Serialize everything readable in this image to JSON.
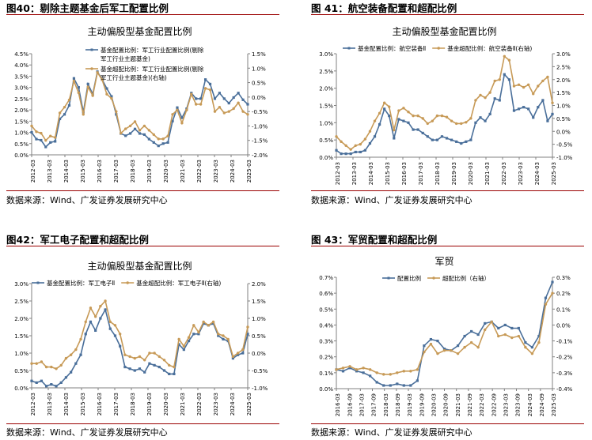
{
  "source_text": "数据来源：Wind、广发证券发展研究中心",
  "colors": {
    "blue": "#4a6f9a",
    "gold": "#c79a57",
    "axis": "#808080",
    "rule": "#9a0000"
  },
  "panels": [
    {
      "figure_title": "图40：剔除主题基金后军工配置比例",
      "chart_data": {
        "type": "line",
        "title": "主动偏股型基金配置比例",
        "legend_position": "top-center",
        "grid": false,
        "x_ticks": [
          "2012-03",
          "2013-03",
          "2014-03",
          "2015-03",
          "2016-03",
          "2017-03",
          "2018-03",
          "2019-03",
          "2020-03",
          "2021-03",
          "2022-03",
          "2023-03",
          "2024-03",
          "2025-03"
        ],
        "left_ticks": [
          "4.5%",
          "4.0%",
          "3.5%",
          "3.0%",
          "2.5%",
          "2.0%",
          "1.5%",
          "1.0%",
          "0.5%",
          "0.0%"
        ],
        "right_ticks": [
          "1.5%",
          "1.0%",
          "0.5%",
          "0.0%",
          "-0.5%",
          "-1.0%",
          "-1.5%",
          "-2.0%"
        ],
        "ylim_left": [
          0,
          4.5
        ],
        "ylim_right": [
          -2.0,
          1.5
        ],
        "series": [
          {
            "name": "基金配置比例：军工行业配置比例(剔除军工行业主题基金)",
            "axis": "left",
            "values": [
              1.0,
              0.7,
              0.65,
              0.35,
              0.55,
              0.6,
              1.6,
              1.8,
              2.2,
              3.4,
              3.0,
              1.9,
              3.15,
              2.7,
              3.7,
              3.35,
              2.95,
              2.6,
              1.8,
              0.95,
              0.85,
              0.95,
              1.15,
              0.95,
              0.9,
              0.7,
              0.55,
              0.4,
              0.5,
              0.55,
              1.5,
              2.1,
              1.65,
              2.05,
              2.75,
              2.5,
              2.5,
              3.35,
              3.15,
              2.5,
              2.75,
              2.5,
              2.3,
              2.55,
              2.75,
              2.45,
              2.25
            ]
          },
          {
            "name": "基金超配比例：军工行业配置比例(剔除军工行业主题基金)(右轴)",
            "axis": "right",
            "values": [
              -1.0,
              -1.2,
              -1.25,
              -1.5,
              -1.35,
              -1.4,
              -0.55,
              -0.35,
              -0.1,
              0.55,
              0.15,
              -0.6,
              0.35,
              0.05,
              0.85,
              0.6,
              0.1,
              -0.05,
              -0.5,
              -1.25,
              -1.1,
              -1.0,
              -0.85,
              -1.15,
              -1.0,
              -1.15,
              -1.3,
              -1.45,
              -1.45,
              -1.35,
              -0.6,
              -0.45,
              -0.9,
              -0.45,
              0.1,
              -0.25,
              -0.25,
              0.3,
              0.25,
              -0.5,
              -0.35,
              -0.55,
              -0.5,
              -0.4,
              -0.2,
              -0.5,
              -0.6
            ]
          }
        ]
      }
    },
    {
      "figure_title": "图 41：航空装备配置和超配比例",
      "chart_data": {
        "type": "line",
        "title": "主动偏股型基金配置比例",
        "legend_position": "top-center",
        "grid": false,
        "x_ticks": [
          "2012-03",
          "2013-03",
          "2014-03",
          "2015-03",
          "2016-03",
          "2017-03",
          "2018-03",
          "2019-03",
          "2020-03",
          "2021-03",
          "2022-03",
          "2023-03",
          "2024-03",
          "2025-03"
        ],
        "left_ticks": [
          "3.0%",
          "2.5%",
          "2.0%",
          "1.5%",
          "1.0%",
          "0.5%",
          "0.0%"
        ],
        "right_ticks": [
          "3.0%",
          "2.5%",
          "2.0%",
          "1.5%",
          "1.0%",
          "0.5%",
          "0.0%",
          "-0.5%",
          "-1.0%"
        ],
        "ylim_left": [
          0,
          3.0
        ],
        "ylim_right": [
          -1.0,
          3.0
        ],
        "series": [
          {
            "name": "基金配置比例：航空装备Ⅱ",
            "axis": "left",
            "values": [
              0.2,
              0.1,
              0.1,
              0.1,
              0.15,
              0.15,
              0.2,
              0.4,
              0.6,
              0.95,
              1.4,
              1.2,
              0.55,
              1.1,
              1.05,
              1.0,
              0.8,
              0.8,
              0.7,
              0.6,
              0.5,
              0.5,
              0.6,
              0.55,
              0.5,
              0.45,
              0.4,
              0.45,
              0.5,
              1.0,
              1.15,
              1.05,
              1.25,
              1.7,
              1.65,
              2.4,
              2.25,
              1.35,
              1.4,
              1.45,
              1.4,
              1.15,
              1.45,
              1.65,
              1.05,
              1.25
            ]
          },
          {
            "name": "基金超配比例：航空装备Ⅱ(右轴)",
            "axis": "right",
            "values": [
              -0.2,
              -0.4,
              -0.55,
              -0.7,
              -0.55,
              -0.5,
              -0.3,
              0.0,
              0.4,
              0.7,
              1.1,
              0.95,
              0.05,
              0.8,
              0.9,
              0.75,
              0.6,
              0.6,
              0.5,
              0.3,
              0.4,
              0.6,
              0.6,
              0.55,
              0.4,
              0.3,
              0.3,
              0.35,
              0.5,
              1.2,
              1.4,
              1.3,
              1.5,
              1.95,
              2.0,
              2.9,
              2.75,
              1.75,
              1.8,
              1.7,
              1.8,
              1.45,
              1.75,
              1.95,
              2.1,
              1.1
            ]
          }
        ]
      }
    },
    {
      "figure_title": "图42：军工电子配置和超配比例",
      "chart_data": {
        "type": "line",
        "title": "主动偏股型基金配置比例",
        "legend_position": "top-center",
        "grid": false,
        "x_ticks": [
          "2012-03",
          "2013-03",
          "2014-03",
          "2015-03",
          "2016-03",
          "2017-03",
          "2018-03",
          "2019-03",
          "2020-03",
          "2021-03",
          "2022-03",
          "2023-03",
          "2024-03",
          "2025-03"
        ],
        "left_ticks": [
          "3.0%",
          "2.5%",
          "2.0%",
          "1.5%",
          "1.0%",
          "0.5%",
          "0.0%"
        ],
        "right_ticks": [
          "2.0%",
          "1.5%",
          "1.0%",
          "0.5%",
          "0.0%",
          "-0.5%",
          "-1.0%"
        ],
        "ylim_left": [
          0,
          3.0
        ],
        "ylim_right": [
          -1.0,
          2.0
        ],
        "series": [
          {
            "name": "基金配置比例：军工电子Ⅱ",
            "axis": "left",
            "values": [
              0.2,
              0.15,
              0.2,
              0.05,
              0.1,
              0.05,
              0.15,
              0.3,
              0.45,
              0.7,
              0.95,
              1.55,
              1.9,
              1.65,
              2.0,
              2.25,
              1.7,
              1.5,
              1.2,
              0.6,
              0.55,
              0.5,
              0.55,
              0.45,
              0.7,
              0.65,
              0.6,
              0.5,
              0.4,
              0.4,
              1.25,
              1.1,
              1.35,
              1.55,
              1.55,
              1.85,
              1.8,
              1.85,
              1.5,
              1.4,
              1.35,
              0.85,
              0.95,
              1.0,
              1.55
            ]
          },
          {
            "name": "基金超配比例：军工电子Ⅱ(右轴)",
            "axis": "right",
            "values": [
              -0.3,
              -0.3,
              -0.25,
              -0.4,
              -0.4,
              -0.45,
              -0.35,
              -0.15,
              -0.05,
              0.1,
              0.4,
              0.9,
              1.3,
              1.05,
              1.35,
              1.5,
              0.9,
              0.8,
              0.55,
              -0.05,
              -0.1,
              -0.15,
              -0.1,
              -0.2,
              0.0,
              0.0,
              -0.1,
              -0.2,
              -0.35,
              -0.4,
              0.4,
              0.2,
              0.45,
              0.8,
              0.6,
              0.9,
              0.8,
              0.9,
              0.55,
              0.5,
              0.4,
              -0.1,
              0.0,
              0.1,
              0.75
            ]
          }
        ]
      }
    },
    {
      "figure_title": "图 43：军贸配置和超配比例",
      "chart_data": {
        "type": "line",
        "title": "军贸",
        "legend_position": "top-center",
        "grid": false,
        "x_ticks": [
          "2016-03",
          "2016-09",
          "2017-03",
          "2017-09",
          "2018-03",
          "2018-09",
          "2019-03",
          "2019-09",
          "2020-03",
          "2020-09",
          "2021-03",
          "2021-09",
          "2022-03",
          "2022-09",
          "2023-03",
          "2023-09",
          "2024-03",
          "2024-09",
          "2025-03"
        ],
        "left_ticks": [
          "0.7%",
          "0.6%",
          "0.5%",
          "0.4%",
          "0.3%",
          "0.2%",
          "0.1%",
          "0.0%"
        ],
        "right_ticks": [
          "0.3%",
          "0.2%",
          "0.1%",
          "0.0%",
          "-0.1%",
          "-0.2%",
          "-0.3%",
          "-0.4%"
        ],
        "ylim_left": [
          0,
          0.7
        ],
        "ylim_right": [
          -0.4,
          0.3
        ],
        "series": [
          {
            "name": "配置比例",
            "axis": "left",
            "values": [
              0.12,
              0.11,
              0.13,
              0.11,
              0.1,
              0.08,
              0.04,
              0.02,
              0.02,
              0.03,
              0.02,
              0.02,
              0.05,
              0.27,
              0.31,
              0.3,
              0.25,
              0.24,
              0.27,
              0.33,
              0.36,
              0.34,
              0.41,
              0.42,
              0.38,
              0.4,
              0.38,
              0.38,
              0.29,
              0.26,
              0.33,
              0.57,
              0.67
            ]
          },
          {
            "name": "超配比例（右轴）",
            "axis": "right",
            "values": [
              -0.28,
              -0.27,
              -0.26,
              -0.28,
              -0.27,
              -0.28,
              -0.3,
              -0.31,
              -0.31,
              -0.3,
              -0.29,
              -0.29,
              -0.28,
              -0.17,
              -0.12,
              -0.18,
              -0.16,
              -0.16,
              -0.18,
              -0.14,
              -0.11,
              -0.14,
              -0.03,
              0.02,
              -0.07,
              -0.06,
              -0.08,
              -0.07,
              -0.14,
              -0.18,
              -0.11,
              0.13,
              0.2
            ]
          }
        ]
      }
    }
  ]
}
